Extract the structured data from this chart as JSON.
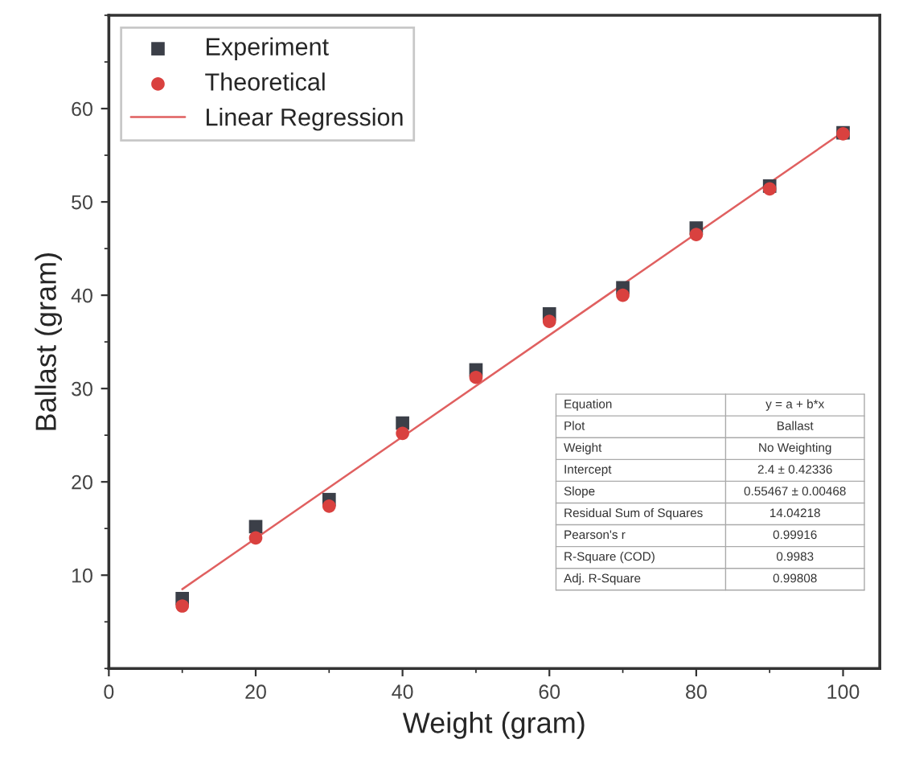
{
  "chart_data": {
    "type": "scatter",
    "xlabel": "Weight (gram)",
    "ylabel": "Ballast (gram)",
    "x": [
      10,
      20,
      30,
      40,
      50,
      60,
      70,
      80,
      90,
      100
    ],
    "series": [
      {
        "name": "Experiment",
        "color": "#3b3f48",
        "marker": "square",
        "values": [
          7.5,
          15.2,
          18.1,
          26.3,
          32.0,
          38.0,
          40.8,
          47.2,
          51.7,
          57.4
        ]
      },
      {
        "name": "Theoretical",
        "color": "#d9413f",
        "marker": "circle",
        "values": [
          6.7,
          14.0,
          17.4,
          25.2,
          31.2,
          37.2,
          40.0,
          46.5,
          51.4,
          57.3
        ]
      },
      {
        "name": "Linear Regression",
        "type": "line",
        "color": "#e06060",
        "marker": "none",
        "line_style": "solid",
        "x": [
          10,
          100
        ],
        "values": [
          8.5,
          57.5
        ]
      }
    ],
    "xlim": [
      0,
      105
    ],
    "ylim": [
      0,
      70
    ],
    "xticks": [
      0,
      20,
      40,
      60,
      80,
      100
    ],
    "yticks": [
      10,
      20,
      30,
      40,
      50,
      60
    ],
    "grid": false,
    "legend": "top left",
    "annotations": [
      "Equation",
      "y = a + b*x",
      "Plot",
      "Ballast",
      "Weight",
      "No Weighting",
      "Intercept",
      "2.4 ± 0.42336",
      "Slope",
      "0.55467 ± 0.00468",
      "Residual Sum of Squares",
      "14.04218",
      "Pearson's r",
      "0.99916",
      "R-Square (COD)",
      "0.9983",
      "Adj. R-Square",
      "0.99808"
    ]
  }
}
